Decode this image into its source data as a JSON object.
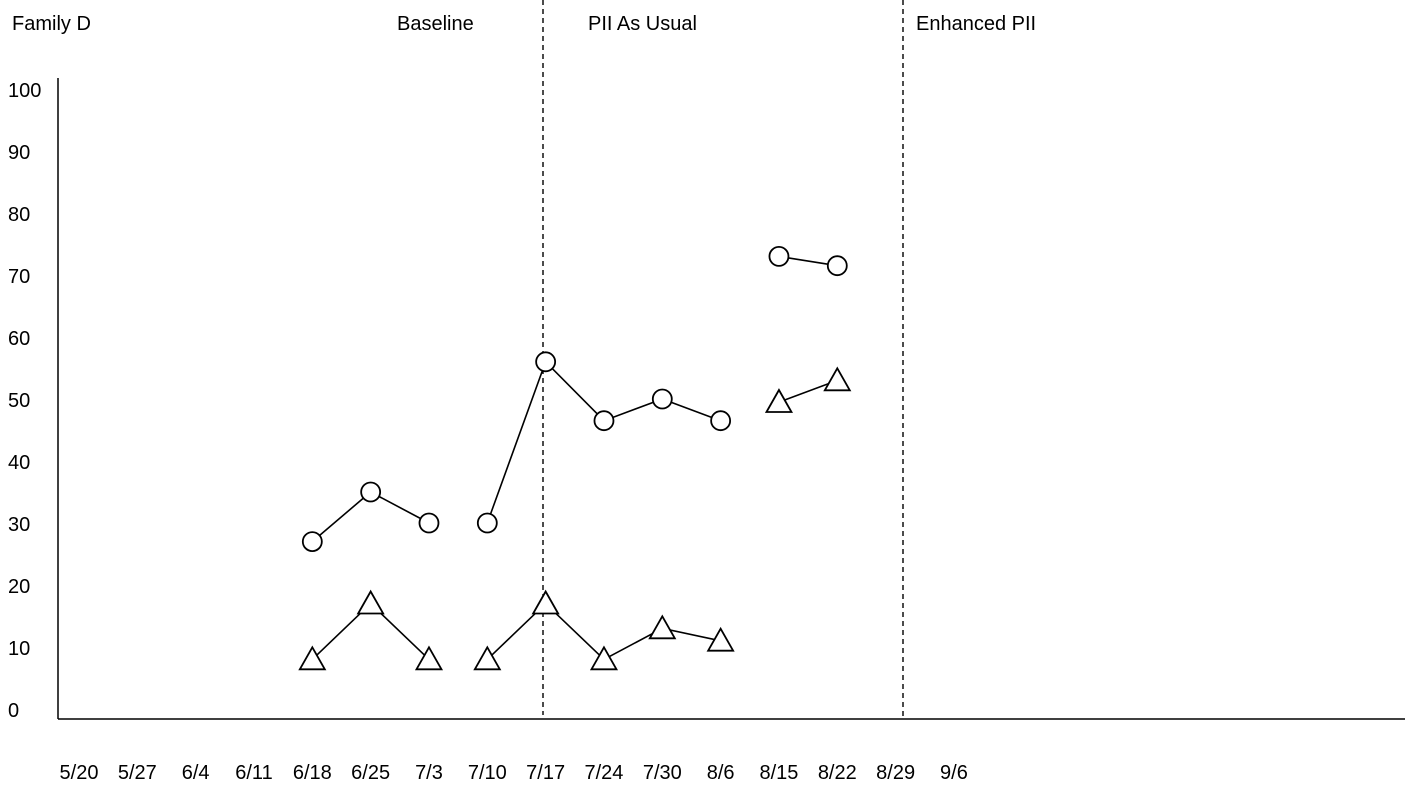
{
  "chart_data": {
    "type": "line",
    "title": "Family D",
    "xlabel": "",
    "ylabel": "",
    "ylim": [
      0,
      100
    ],
    "y_ticks": [
      "0",
      "10",
      "20",
      "30",
      "40",
      "50",
      "60",
      "70",
      "80",
      "90",
      "100"
    ],
    "categories": [
      "5/20",
      "5/27",
      "6/4",
      "6/11",
      "6/18",
      "6/25",
      "7/3",
      "7/10",
      "7/17",
      "7/24",
      "7/30",
      "8/6",
      "8/15",
      "8/22",
      "8/29",
      "9/6"
    ],
    "grid": false,
    "legend": "none",
    "phases": [
      {
        "label": "Baseline",
        "boundary_after": "7/3"
      },
      {
        "label": "PII As Usual",
        "boundary_after": "8/6"
      },
      {
        "label": "Enhanced PII"
      }
    ],
    "series": [
      {
        "marker": "circle",
        "segments": [
          [
            {
              "x": "6/18",
              "y": 27
            },
            {
              "x": "6/25",
              "y": 35
            },
            {
              "x": "7/3",
              "y": 30
            }
          ],
          [
            {
              "x": "7/10",
              "y": 30
            },
            {
              "x": "7/17",
              "y": 56
            },
            {
              "x": "7/24",
              "y": 46.5
            },
            {
              "x": "7/30",
              "y": 50
            },
            {
              "x": "8/6",
              "y": 46.5
            }
          ],
          [
            {
              "x": "8/15",
              "y": 73
            },
            {
              "x": "8/22",
              "y": 71.5
            }
          ]
        ]
      },
      {
        "marker": "triangle",
        "segments": [
          [
            {
              "x": "6/18",
              "y": 8
            },
            {
              "x": "6/25",
              "y": 17
            },
            {
              "x": "7/3",
              "y": 8
            }
          ],
          [
            {
              "x": "7/10",
              "y": 8
            },
            {
              "x": "7/17",
              "y": 17
            },
            {
              "x": "7/24",
              "y": 8
            },
            {
              "x": "7/30",
              "y": 13
            },
            {
              "x": "8/6",
              "y": 11
            }
          ],
          [
            {
              "x": "8/15",
              "y": 49.5
            },
            {
              "x": "8/22",
              "y": 53
            }
          ]
        ]
      }
    ]
  }
}
